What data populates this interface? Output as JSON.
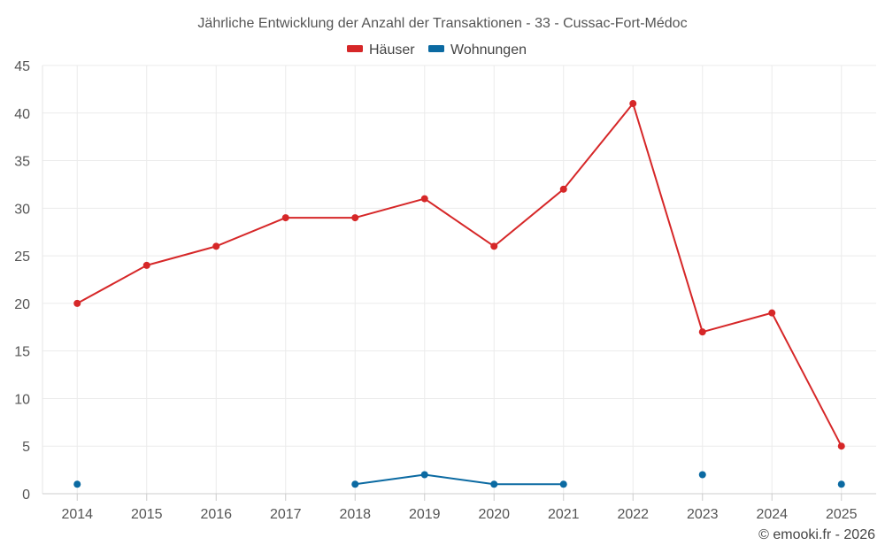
{
  "chart_data": {
    "type": "line",
    "title": "Jährliche Entwicklung der Anzahl der Transaktionen - 33 - Cussac-Fort-Médoc",
    "categories": [
      "2014",
      "2015",
      "2016",
      "2017",
      "2018",
      "2019",
      "2020",
      "2021",
      "2022",
      "2023",
      "2024",
      "2025"
    ],
    "series": [
      {
        "name": "Häuser",
        "color": "#d62728",
        "values": [
          20,
          24,
          26,
          29,
          29,
          31,
          26,
          32,
          41,
          17,
          19,
          5
        ]
      },
      {
        "name": "Wohnungen",
        "color": "#0b6aa2",
        "values": [
          1,
          null,
          null,
          null,
          1,
          2,
          1,
          1,
          null,
          2,
          null,
          1
        ]
      }
    ],
    "ylim": [
      0,
      45
    ],
    "yticks": [
      0,
      5,
      10,
      15,
      20,
      25,
      30,
      35,
      40,
      45
    ],
    "grid": true,
    "legend_position": "top-center",
    "xlabel": "",
    "ylabel": ""
  },
  "credit": "© emooki.fr - 2026"
}
